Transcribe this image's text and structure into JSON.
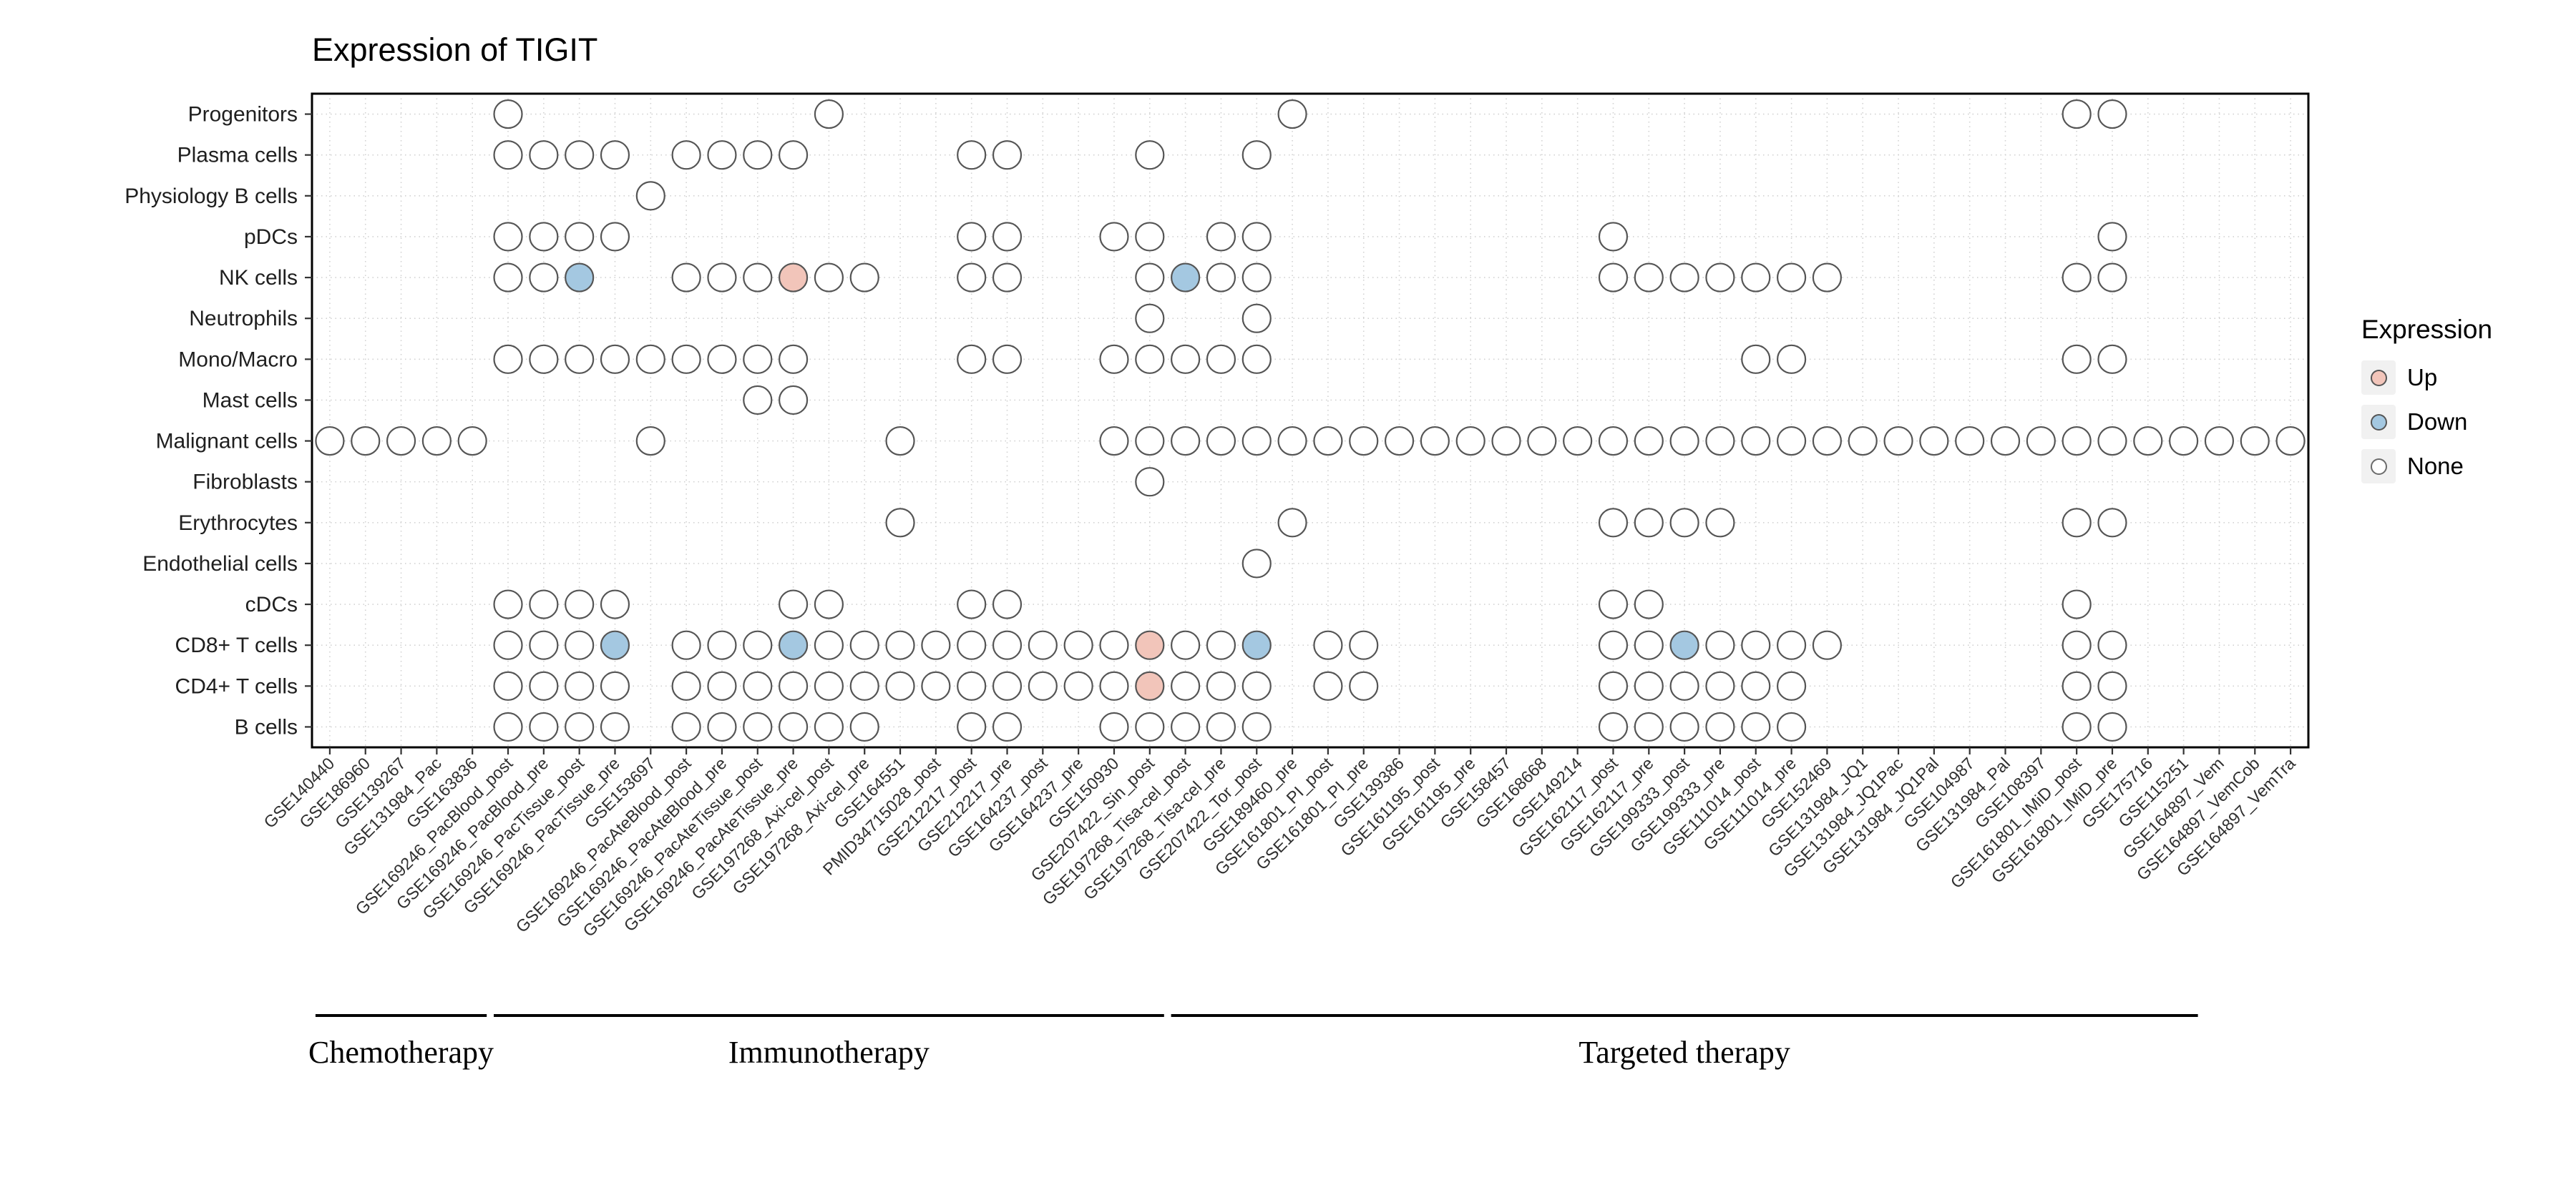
{
  "title": "Expression of TIGIT",
  "legend": {
    "title": "Expression",
    "items": [
      {
        "key": "up",
        "label": "Up",
        "fill": "#f2c5ba",
        "stroke": "#555555"
      },
      {
        "key": "down",
        "label": "Down",
        "fill": "#a4c8e1",
        "stroke": "#555555"
      },
      {
        "key": "none",
        "label": "None",
        "fill": "#ffffff",
        "stroke": "#6b6b6b"
      }
    ]
  },
  "chart_data": {
    "type": "heatmap",
    "title": "Expression of TIGIT",
    "xlabel": "",
    "ylabel": "",
    "legend_position": "right",
    "grid": "dotted",
    "colors": {
      "up": "#f2c5ba",
      "down": "#a4c8e1",
      "none": "#ffffff",
      "stroke": "#555555"
    },
    "rows": [
      "Progenitors",
      "Plasma cells",
      "Physiology B cells",
      "pDCs",
      "NK cells",
      "Neutrophils",
      "Mono/Macro",
      "Mast cells",
      "Malignant cells",
      "Fibroblasts",
      "Erythrocytes",
      "Endothelial cells",
      "cDCs",
      "CD8+ T cells",
      "CD4+ T cells",
      "B cells"
    ],
    "columns": [
      "GSE140440",
      "GSE186960",
      "GSE139267",
      "GSE131984_Pac",
      "GSE163836",
      "GSE169246_PacBlood_post",
      "GSE169246_PacBlood_pre",
      "GSE169246_PacTissue_post",
      "GSE169246_PacTissue_pre",
      "GSE153697",
      "GSE169246_PacAteBlood_post",
      "GSE169246_PacAteBlood_pre",
      "GSE169246_PacAteTissue_post",
      "GSE169246_PacAteTissue_pre",
      "GSE197268_Axi-cel_post",
      "GSE197268_Axi-cel_pre",
      "GSE164551",
      "PMID34715028_post",
      "GSE212217_post",
      "GSE212217_pre",
      "GSE164237_post",
      "GSE164237_pre",
      "GSE150930",
      "GSE207422_Sin_post",
      "GSE197268_Tisa-cel_post",
      "GSE197268_Tisa-cel_pre",
      "GSE207422_Tor_post",
      "GSE189460_pre",
      "GSE161801_PI_post",
      "GSE161801_PI_pre",
      "GSE139386",
      "GSE161195_post",
      "GSE161195_pre",
      "GSE158457",
      "GSE168668",
      "GSE149214",
      "GSE162117_post",
      "GSE162117_pre",
      "GSE199333_post",
      "GSE199333_pre",
      "GSE111014_post",
      "GSE111014_pre",
      "GSE152469",
      "GSE131984_JQ1",
      "GSE131984_JQ1Pac",
      "GSE131984_JQ1Pal",
      "GSE104987",
      "GSE131984_Pal",
      "GSE108397",
      "GSE161801_IMiD_post",
      "GSE161801_IMiD_pre",
      "GSE175716",
      "GSE115251",
      "GSE164897_Vem",
      "GSE164897_VemCob",
      "GSE164897_VemTra"
    ],
    "groups": [
      {
        "label": "Chemotherapy",
        "start": 0,
        "end": 4
      },
      {
        "label": "Immunotherapy",
        "start": 5,
        "end": 23
      },
      {
        "label": "Targeted therapy",
        "start": 24,
        "end": 52
      }
    ],
    "cells": [
      {
        "row": "Progenitors",
        "none": [
          5,
          14,
          27,
          49,
          50
        ],
        "up": [],
        "down": []
      },
      {
        "row": "Plasma cells",
        "none": [
          5,
          6,
          7,
          8,
          10,
          11,
          12,
          13,
          18,
          19,
          23,
          26
        ],
        "up": [],
        "down": []
      },
      {
        "row": "Physiology B cells",
        "none": [
          9
        ],
        "up": [],
        "down": []
      },
      {
        "row": "pDCs",
        "none": [
          5,
          6,
          7,
          8,
          18,
          19,
          22,
          23,
          25,
          26,
          36,
          50
        ],
        "up": [],
        "down": []
      },
      {
        "row": "NK cells",
        "none": [
          5,
          6,
          10,
          11,
          12,
          14,
          15,
          18,
          19,
          23,
          25,
          26,
          36,
          37,
          38,
          39,
          40,
          41,
          42,
          49,
          50
        ],
        "up": [
          13
        ],
        "down": [
          7,
          24
        ]
      },
      {
        "row": "Neutrophils",
        "none": [
          23,
          26
        ],
        "up": [],
        "down": []
      },
      {
        "row": "Mono/Macro",
        "none": [
          5,
          6,
          7,
          8,
          9,
          10,
          11,
          12,
          13,
          18,
          19,
          22,
          23,
          24,
          25,
          26,
          40,
          41,
          49,
          50
        ],
        "up": [],
        "down": []
      },
      {
        "row": "Mast cells",
        "none": [
          12,
          13
        ],
        "up": [],
        "down": []
      },
      {
        "row": "Malignant cells",
        "none": [
          0,
          1,
          2,
          3,
          4,
          9,
          16,
          22,
          23,
          24,
          25,
          26,
          27,
          28,
          29,
          30,
          31,
          32,
          33,
          34,
          35,
          36,
          37,
          38,
          39,
          40,
          41,
          42,
          43,
          44,
          45,
          46,
          47,
          48,
          49,
          50,
          51,
          52,
          53,
          54,
          55
        ],
        "up": [],
        "down": []
      },
      {
        "row": "Fibroblasts",
        "none": [
          23
        ],
        "up": [],
        "down": []
      },
      {
        "row": "Erythrocytes",
        "none": [
          16,
          27,
          36,
          37,
          38,
          39,
          49,
          50
        ],
        "up": [],
        "down": []
      },
      {
        "row": "Endothelial cells",
        "none": [
          26
        ],
        "up": [],
        "down": []
      },
      {
        "row": "cDCs",
        "none": [
          5,
          6,
          7,
          8,
          13,
          14,
          18,
          19,
          36,
          37,
          49
        ],
        "up": [],
        "down": []
      },
      {
        "row": "CD8+ T cells",
        "none": [
          5,
          6,
          7,
          10,
          11,
          12,
          14,
          15,
          16,
          17,
          18,
          19,
          20,
          21,
          22,
          24,
          25,
          28,
          29,
          36,
          37,
          39,
          40,
          41,
          42,
          49,
          50
        ],
        "up": [
          23
        ],
        "down": [
          8,
          13,
          26,
          38
        ]
      },
      {
        "row": "CD4+ T cells",
        "none": [
          5,
          6,
          7,
          8,
          10,
          11,
          12,
          13,
          14,
          15,
          16,
          17,
          18,
          19,
          20,
          21,
          22,
          24,
          25,
          26,
          28,
          29,
          36,
          37,
          38,
          39,
          40,
          41,
          49,
          50
        ],
        "up": [
          23
        ],
        "down": []
      },
      {
        "row": "B cells",
        "none": [
          5,
          6,
          7,
          8,
          10,
          11,
          12,
          13,
          14,
          15,
          18,
          19,
          22,
          23,
          24,
          25,
          26,
          36,
          37,
          38,
          39,
          40,
          41,
          49,
          50
        ],
        "up": [],
        "down": []
      }
    ]
  }
}
